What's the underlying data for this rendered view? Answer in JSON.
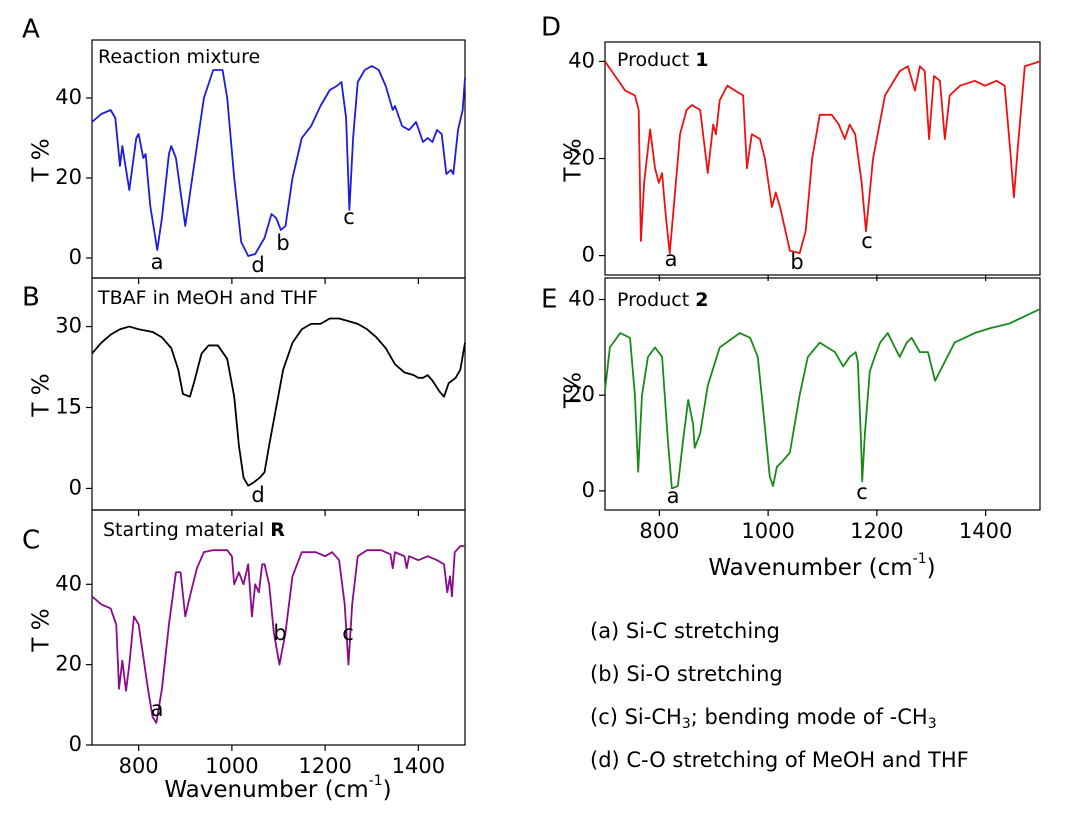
{
  "chart_data": [
    {
      "type": "line",
      "panel": "A",
      "title": "Reaction mixture",
      "ylabel": "T %",
      "color": "#1c1cdc",
      "x": [
        700,
        720,
        740,
        750,
        760,
        765,
        780,
        795,
        800,
        810,
        815,
        825,
        840,
        850,
        865,
        870,
        880,
        900,
        915,
        940,
        960,
        980,
        990,
        1005,
        1020,
        1035,
        1050,
        1060,
        1070,
        1085,
        1095,
        1105,
        1115,
        1130,
        1150,
        1170,
        1190,
        1210,
        1225,
        1235,
        1245,
        1252,
        1260,
        1270,
        1285,
        1300,
        1315,
        1330,
        1345,
        1350,
        1365,
        1380,
        1395,
        1410,
        1420,
        1430,
        1440,
        1450,
        1460,
        1470,
        1475,
        1485,
        1495,
        1500
      ],
      "values": [
        34,
        36,
        37,
        35,
        23,
        28,
        17,
        30,
        31,
        25,
        26,
        13,
        2,
        10,
        26,
        28,
        25,
        8,
        20,
        40,
        47,
        47,
        40,
        20,
        4,
        0.5,
        1,
        3,
        5,
        11,
        10,
        7,
        8,
        20,
        30,
        33,
        38,
        42,
        43,
        44,
        35,
        12,
        30,
        44,
        47,
        48,
        47,
        43,
        37,
        38,
        33,
        32,
        34,
        29,
        30,
        29,
        32,
        31,
        21,
        22,
        21,
        32,
        37,
        45
      ],
      "xlim": [
        700,
        1500
      ],
      "xticks": [
        800,
        1000,
        1200,
        1400
      ],
      "show_xtick_labels": false,
      "ylim": [
        -5,
        54.5
      ],
      "yticks": [
        0,
        20,
        40
      ],
      "annotations": [
        "a",
        "d",
        "b",
        "c"
      ]
    },
    {
      "type": "line",
      "panel": "B",
      "title": "TBAF in MeOH and THF",
      "ylabel": "T %",
      "color": "#000000",
      "x": [
        700,
        720,
        740,
        760,
        780,
        800,
        830,
        850,
        870,
        885,
        895,
        910,
        920,
        935,
        950,
        970,
        990,
        1005,
        1015,
        1025,
        1035,
        1045,
        1060,
        1070,
        1080,
        1095,
        1110,
        1130,
        1150,
        1170,
        1190,
        1210,
        1230,
        1250,
        1270,
        1290,
        1310,
        1330,
        1350,
        1370,
        1390,
        1400,
        1410,
        1420,
        1430,
        1445,
        1455,
        1465,
        1480,
        1490,
        1500
      ],
      "values": [
        25,
        27,
        28.5,
        29.5,
        30,
        29.5,
        29,
        28,
        26,
        22,
        17.5,
        17,
        20,
        25,
        26.5,
        26.5,
        24,
        17,
        8,
        2,
        0.5,
        1,
        2,
        3,
        8,
        15,
        22,
        27,
        29.5,
        30.5,
        30.5,
        31.5,
        31.5,
        31,
        30.5,
        29.5,
        28,
        26,
        23,
        21.5,
        21,
        20.5,
        20.5,
        21,
        20,
        18,
        17,
        19.5,
        20.5,
        22,
        27
      ],
      "xlim": [
        700,
        1500
      ],
      "xticks": [
        800,
        1000,
        1200,
        1400
      ],
      "show_xtick_labels": false,
      "ylim": [
        -4,
        39
      ],
      "yticks": [
        0,
        15,
        30
      ],
      "annotations": [
        "d"
      ]
    },
    {
      "type": "line",
      "panel": "C",
      "title": "Starting material",
      "title_emphasis": "R",
      "ylabel": "T %",
      "color": "#8b0a8b",
      "x": [
        700,
        720,
        740,
        752,
        758,
        765,
        773,
        780,
        790,
        800,
        810,
        820,
        830,
        838,
        850,
        865,
        880,
        890,
        900,
        910,
        925,
        940,
        960,
        990,
        1000,
        1005,
        1015,
        1025,
        1035,
        1043,
        1050,
        1058,
        1065,
        1070,
        1080,
        1090,
        1102,
        1115,
        1130,
        1150,
        1180,
        1200,
        1215,
        1230,
        1242,
        1250,
        1258,
        1270,
        1290,
        1320,
        1340,
        1345,
        1350,
        1370,
        1375,
        1380,
        1400,
        1420,
        1440,
        1455,
        1462,
        1468,
        1472,
        1478,
        1490,
        1500
      ],
      "values": [
        37,
        35,
        34,
        30,
        14,
        21,
        13.5,
        20,
        32,
        30,
        22,
        14,
        7,
        5.5,
        14,
        30,
        43,
        43,
        32,
        37,
        44,
        48,
        48.5,
        48.5,
        47,
        40,
        43,
        40,
        45,
        32,
        40,
        38,
        45,
        45,
        40,
        28,
        20,
        28,
        42,
        48,
        48,
        47,
        48,
        46,
        35,
        20,
        35,
        47,
        48.5,
        48.5,
        47.5,
        44,
        48,
        47,
        44,
        47,
        46,
        47,
        46,
        45,
        38,
        42,
        37,
        48,
        49.5,
        49.5
      ],
      "xlim": [
        700,
        1500
      ],
      "xticks": [
        800,
        1000,
        1200,
        1400
      ],
      "show_xtick_labels": true,
      "ylim": [
        0,
        58.5
      ],
      "yticks": [
        0,
        20,
        40
      ],
      "annotations": [
        "a",
        "b",
        "c"
      ]
    },
    {
      "type": "line",
      "panel": "D",
      "title": "Product",
      "title_emphasis": "1",
      "ylabel": "T %",
      "color": "#ee1111",
      "x": [
        700,
        737,
        755,
        762,
        766,
        772,
        783,
        792,
        799,
        805,
        808,
        812,
        819,
        828,
        838,
        850,
        860,
        875,
        889,
        899,
        904,
        911,
        925,
        939,
        954,
        961,
        970,
        985,
        994,
        1007,
        1014,
        1022,
        1040,
        1058,
        1069,
        1081,
        1095,
        1117,
        1130,
        1141,
        1150,
        1160,
        1172,
        1180,
        1193,
        1215,
        1242,
        1257,
        1270,
        1279,
        1288,
        1296,
        1305,
        1316,
        1325,
        1334,
        1353,
        1380,
        1399,
        1420,
        1435,
        1445,
        1452,
        1459,
        1472,
        1500
      ],
      "values": [
        40,
        34,
        33,
        30,
        3,
        15,
        26,
        18,
        15,
        17,
        13,
        8,
        0.5,
        12,
        25,
        30,
        31,
        30,
        17,
        27,
        25,
        32,
        35,
        34,
        33,
        18,
        25,
        24,
        20,
        10,
        13,
        10,
        1,
        0.5,
        5,
        20,
        29,
        29,
        27,
        24,
        27,
        25,
        15,
        5,
        20,
        33,
        38,
        39,
        34,
        39,
        38,
        24,
        37,
        36,
        24,
        33,
        35,
        36,
        35,
        36,
        35,
        22,
        12,
        22,
        39,
        40
      ],
      "xlim": [
        700,
        1500
      ],
      "xticks": [
        800,
        1000,
        1200,
        1400
      ],
      "show_xtick_labels": false,
      "ylim": [
        -4,
        44
      ],
      "yticks": [
        0,
        20,
        40
      ],
      "annotations": [
        "a",
        "b",
        "c"
      ]
    },
    {
      "type": "line",
      "panel": "E",
      "title": "Product",
      "title_emphasis": "2",
      "ylabel": "T%",
      "color": "#1a8a1a",
      "x": [
        700,
        709,
        728,
        746,
        755,
        761,
        768,
        779,
        792,
        805,
        816,
        823,
        834,
        843,
        853,
        862,
        865,
        875,
        889,
        911,
        948,
        967,
        981,
        990,
        1003,
        1009,
        1016,
        1025,
        1040,
        1058,
        1073,
        1095,
        1123,
        1138,
        1150,
        1161,
        1165,
        1171,
        1173,
        1178,
        1187,
        1196,
        1206,
        1220,
        1233,
        1242,
        1255,
        1264,
        1279,
        1294,
        1307,
        1325,
        1343,
        1380,
        1408,
        1444,
        1481,
        1500
      ],
      "values": [
        21,
        30,
        33,
        32,
        20,
        4,
        20,
        28,
        30,
        28,
        10,
        0.5,
        1,
        10,
        19,
        14,
        9,
        12,
        22,
        30,
        33,
        32,
        28,
        18,
        3,
        1,
        5,
        6,
        8,
        20,
        28,
        31,
        29,
        26,
        28,
        29,
        27,
        10,
        2,
        12,
        25,
        28,
        31,
        33,
        30,
        28,
        31,
        32,
        29,
        29,
        23,
        27,
        31,
        33,
        34,
        35,
        37,
        38
      ],
      "xlim": [
        700,
        1500
      ],
      "xticks": [
        800,
        1000,
        1200,
        1400
      ],
      "show_xtick_labels": true,
      "ylim": [
        -4,
        44.5
      ],
      "yticks": [
        0,
        20,
        40
      ],
      "annotations": [
        "a",
        "c"
      ]
    }
  ],
  "x_axis_label": {
    "text": "Wavenumber (cm",
    "superscript": "-1",
    "close": ")"
  },
  "notes": [
    [
      "(a) Si-C stretching"
    ],
    [
      "(b) Si-O stretching"
    ],
    [
      "(c) Si-CH",
      "3",
      "; bending mode of -CH",
      "3"
    ],
    [
      "(d) C-O stretching of MeOH and THF"
    ]
  ]
}
